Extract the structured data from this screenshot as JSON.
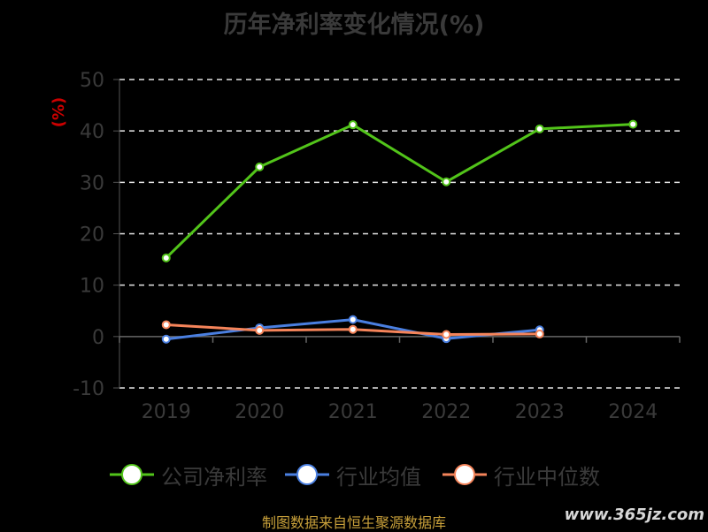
{
  "chart_data": {
    "type": "line",
    "title": "历年净利率变化情况(%)",
    "ylabel": "(%)",
    "categories": [
      "2019",
      "2020",
      "2021",
      "2022",
      "2023",
      "2024"
    ],
    "ylim": [
      -10,
      50
    ],
    "yticks": [
      50,
      40,
      30,
      20,
      10,
      0,
      -10
    ],
    "grid": true,
    "legend_position": "bottom",
    "series": [
      {
        "name": "公司净利率",
        "color": "#52c41a",
        "values": [
          15.3,
          33.0,
          41.2,
          30.1,
          40.4,
          41.3
        ]
      },
      {
        "name": "行业均值",
        "color": "#4a7fe0",
        "values": [
          -0.5,
          1.7,
          3.3,
          -0.4,
          1.3,
          null
        ]
      },
      {
        "name": "行业中位数",
        "color": "#f5845a",
        "values": [
          2.3,
          1.2,
          1.4,
          0.4,
          0.5,
          null
        ]
      }
    ]
  },
  "source": "制图数据来自恒生聚源数据库",
  "watermark": "www.365jz.com"
}
